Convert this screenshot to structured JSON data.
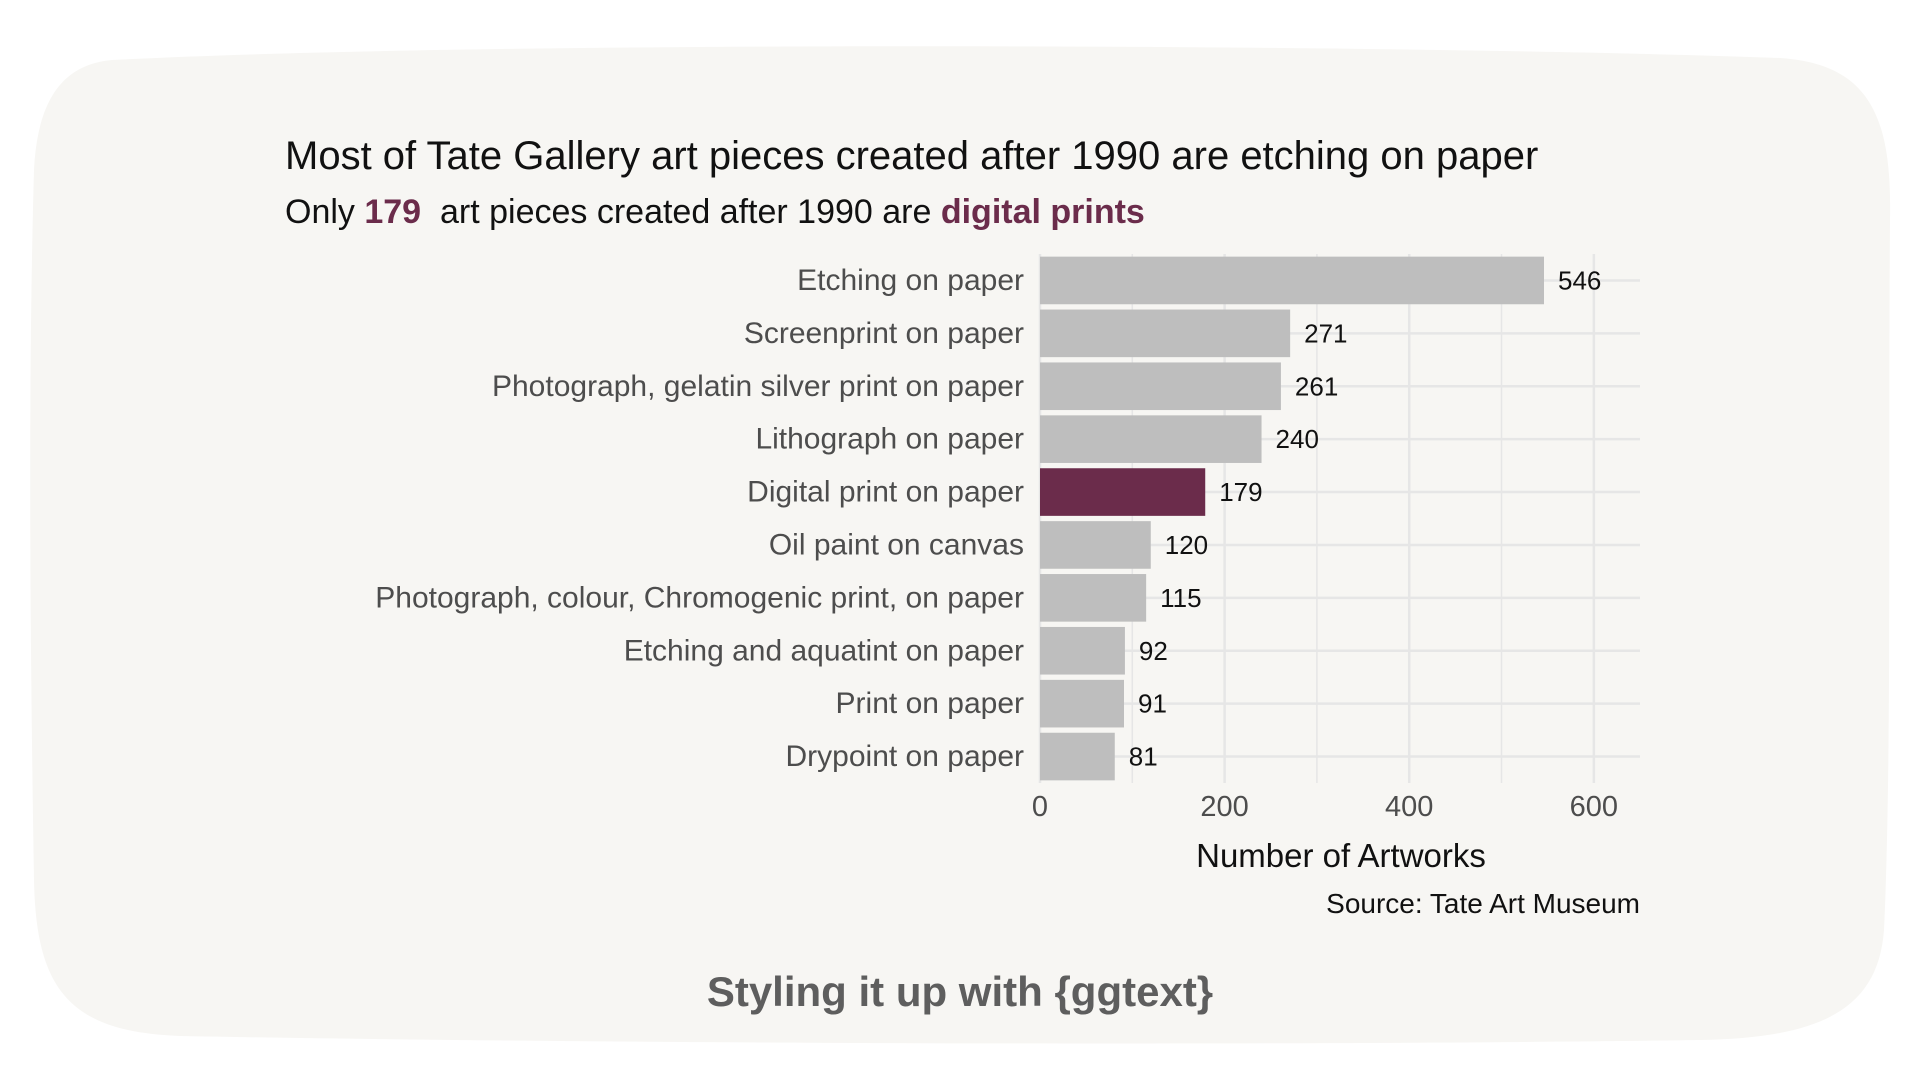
{
  "title": "Most of Tate Gallery art pieces created after 1990 are etching on paper",
  "subtitle": {
    "prefix": "Only ",
    "count": "179",
    "middle": "  art pieces created after 1990 are ",
    "highlight": "digital prints"
  },
  "caption": "Source: Tate Art Museum",
  "bottom_caption": "Styling it up with {ggtext}",
  "colors": {
    "background": "#f7f6f3",
    "bar": "#bebebe",
    "highlight": "#6b2c4b",
    "grid": "#e6e6e6",
    "label": "#4d4d4d"
  },
  "chart_data": {
    "type": "bar",
    "orientation": "horizontal",
    "categories": [
      "Etching on paper",
      "Screenprint on paper",
      "Photograph, gelatin silver print on paper",
      "Lithograph on paper",
      "Digital print on paper",
      "Oil paint on canvas",
      "Photograph, colour, Chromogenic print, on paper",
      "Etching and aquatint on paper",
      "Print on paper",
      "Drypoint on paper"
    ],
    "values": [
      546,
      271,
      261,
      240,
      179,
      120,
      115,
      92,
      91,
      81
    ],
    "data_labels": [
      "546",
      "271",
      "261",
      "240",
      "179",
      "120",
      "115",
      "92",
      "91",
      "81"
    ],
    "highlight_category": "Digital print on paper",
    "xlabel": "Number of Artworks",
    "ylabel": "",
    "xlim": [
      0,
      650
    ],
    "x_ticks": [
      0,
      200,
      400,
      600
    ],
    "x_tick_labels": [
      "0",
      "200",
      "400",
      "600"
    ],
    "grid": true
  }
}
